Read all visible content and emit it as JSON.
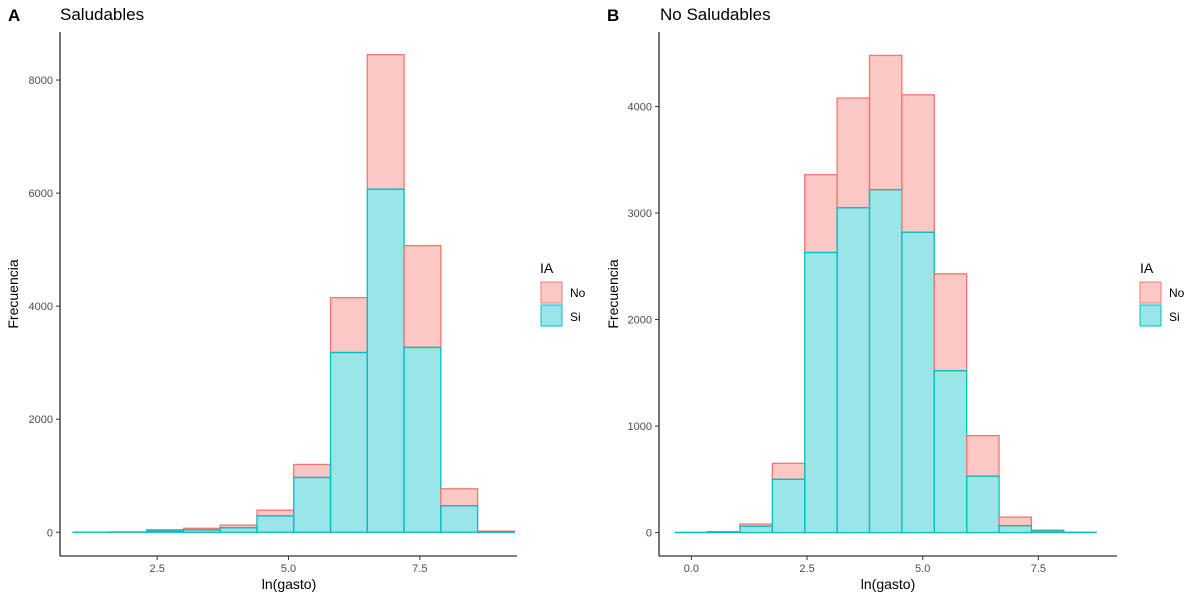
{
  "chart_data": [
    {
      "type": "bar",
      "panel_tag": "A",
      "title": "Saludables",
      "xlabel": "ln(gasto)",
      "ylabel": "Frecuencia",
      "xlim": [
        0.65,
        9.35
      ],
      "ylim": [
        -420,
        8850
      ],
      "x_ticks": [
        2.5,
        5.0,
        7.5
      ],
      "x_tick_labels": [
        "2.5",
        "5.0",
        "7.5"
      ],
      "y_ticks": [
        0,
        2000,
        4000,
        6000,
        8000
      ],
      "y_tick_labels": [
        "0",
        "2000",
        "4000",
        "6000",
        "8000"
      ],
      "bin_width": 0.7,
      "bin_centers": [
        1.25,
        1.95,
        2.65,
        3.35,
        4.05,
        4.75,
        5.45,
        6.15,
        6.85,
        7.55,
        8.25,
        8.95
      ],
      "stacked": true,
      "series": [
        {
          "name": "Si",
          "values": [
            2,
            5,
            25,
            45,
            80,
            290,
            970,
            3180,
            6070,
            3270,
            470,
            10
          ]
        },
        {
          "name": "No",
          "values": [
            0,
            0,
            20,
            25,
            45,
            100,
            230,
            970,
            2380,
            1800,
            300,
            10
          ]
        }
      ],
      "grid": false
    },
    {
      "type": "bar",
      "panel_tag": "B",
      "title": "No Saludables",
      "xlabel": "ln(gasto)",
      "ylabel": "Frecuencia",
      "xlim": [
        -0.7,
        9.2
      ],
      "ylim": [
        -220,
        4700
      ],
      "x_ticks": [
        0.0,
        2.5,
        5.0,
        7.5
      ],
      "x_tick_labels": [
        "0.0",
        "2.5",
        "5.0",
        "7.5"
      ],
      "y_ticks": [
        0,
        1000,
        2000,
        3000,
        4000
      ],
      "y_tick_labels": [
        "0",
        "1000",
        "2000",
        "3000",
        "4000"
      ],
      "bin_width": 0.7,
      "bin_centers": [
        0.0,
        0.7,
        1.4,
        2.1,
        2.8,
        3.5,
        4.2,
        4.9,
        5.6,
        6.3,
        7.0,
        7.7,
        8.4
      ],
      "stacked": true,
      "series": [
        {
          "name": "Si",
          "values": [
            2,
            8,
            60,
            500,
            2630,
            3050,
            3220,
            2820,
            1520,
            530,
            65,
            15,
            3
          ]
        },
        {
          "name": "No",
          "values": [
            0,
            0,
            20,
            150,
            730,
            1030,
            1260,
            1290,
            910,
            380,
            80,
            8,
            0
          ]
        }
      ],
      "grid": false
    }
  ],
  "legend": {
    "title": "IA",
    "position": "right",
    "items": [
      {
        "label": "No",
        "fill": "#f8766d",
        "fill_opacity": 0.4,
        "stroke": "#f8766d"
      },
      {
        "label": "Si",
        "fill": "#00bfc4",
        "fill_opacity": 0.4,
        "stroke": "#00bfc4"
      }
    ]
  },
  "colors": {
    "no": "#f8766d",
    "si": "#00bfc4",
    "axis": "#000000",
    "ticks_text": "#4d4d4d"
  }
}
